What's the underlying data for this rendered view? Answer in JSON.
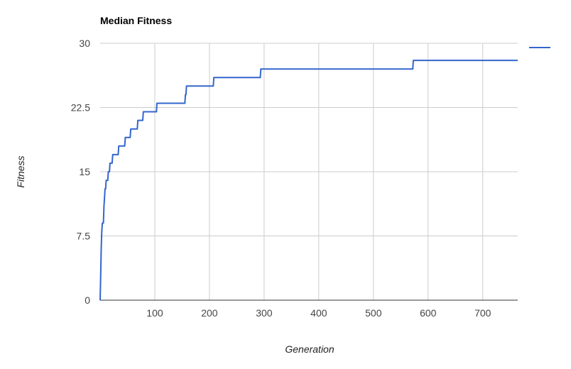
{
  "chart_data": {
    "type": "line",
    "title": "Median Fitness",
    "xlabel": "Generation",
    "ylabel": "Fitness",
    "xlim": [
      0,
      764
    ],
    "ylim": [
      0,
      30
    ],
    "x_ticks": [
      100,
      200,
      300,
      400,
      500,
      600,
      700
    ],
    "y_ticks": [
      0,
      7.5,
      15,
      22.5,
      30
    ],
    "x_tick_labels": [
      "100",
      "200",
      "300",
      "400",
      "500",
      "600",
      "700"
    ],
    "y_tick_labels": [
      "0",
      "7.5",
      "15",
      "22.5",
      "30"
    ],
    "grid": true,
    "legend": "right",
    "color": "#3366cc",
    "series": [
      {
        "values": [
          [
            0,
            0
          ],
          [
            1,
            3
          ],
          [
            2,
            6
          ],
          [
            3,
            8
          ],
          [
            4,
            9
          ],
          [
            6,
            9
          ],
          [
            7,
            11
          ],
          [
            8,
            12
          ],
          [
            9,
            13
          ],
          [
            10,
            13
          ],
          [
            11,
            14
          ],
          [
            14,
            14
          ],
          [
            15,
            15
          ],
          [
            17,
            15
          ],
          [
            18,
            16
          ],
          [
            22,
            16
          ],
          [
            23,
            17
          ],
          [
            33,
            17
          ],
          [
            34,
            18
          ],
          [
            45,
            18
          ],
          [
            46,
            19
          ],
          [
            55,
            19
          ],
          [
            56,
            20
          ],
          [
            68,
            20
          ],
          [
            69,
            21
          ],
          [
            78,
            21
          ],
          [
            79,
            22
          ],
          [
            103,
            22
          ],
          [
            104,
            23
          ],
          [
            155,
            23
          ],
          [
            156,
            24
          ],
          [
            157,
            24
          ],
          [
            158,
            25
          ],
          [
            207,
            25
          ],
          [
            208,
            26
          ],
          [
            293,
            26
          ],
          [
            294,
            27
          ],
          [
            572,
            27
          ],
          [
            573,
            28
          ],
          [
            764,
            28
          ]
        ]
      }
    ]
  }
}
